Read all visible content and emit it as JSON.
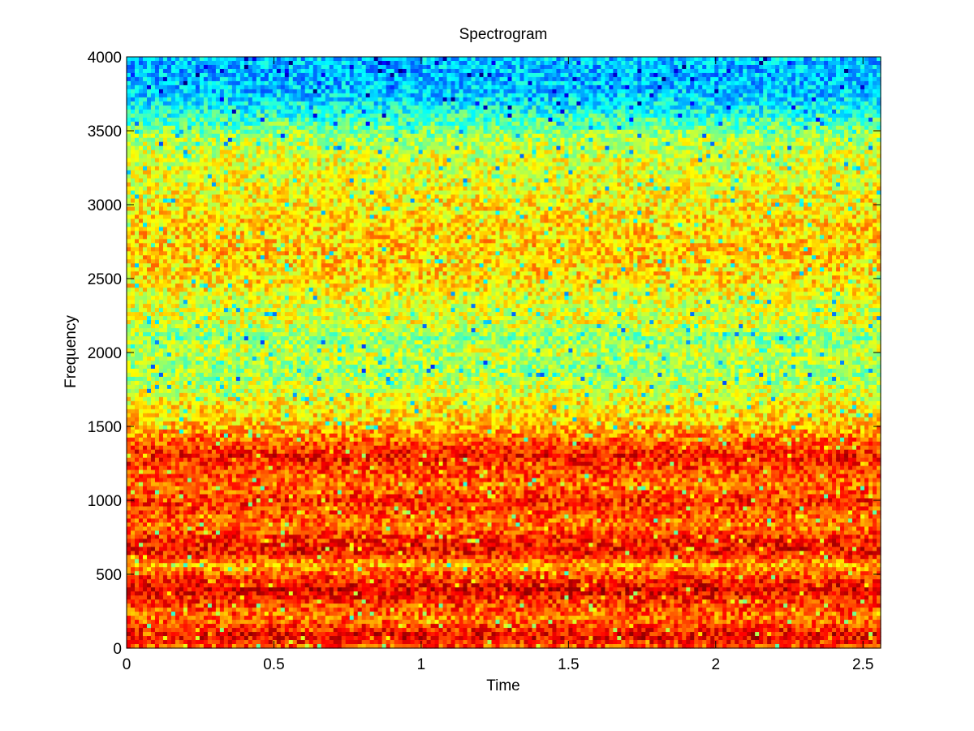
{
  "chart_data": {
    "type": "heatmap",
    "title": "Spectrogram",
    "xlabel": "Time",
    "ylabel": "Frequency",
    "xlim": [
      0,
      2.56
    ],
    "ylim": [
      0,
      4000
    ],
    "xticks": [
      0,
      0.5,
      1,
      1.5,
      2,
      2.5
    ],
    "xtick_labels": [
      "0",
      "0.5",
      "1",
      "1.5",
      "2",
      "2.5"
    ],
    "yticks": [
      0,
      500,
      1000,
      1500,
      2000,
      2500,
      3000,
      3500,
      4000
    ],
    "ytick_labels": [
      "0",
      "500",
      "1000",
      "1500",
      "2000",
      "2500",
      "3000",
      "3500",
      "4000"
    ],
    "colormap": "jet",
    "grid": false,
    "legend": "none",
    "intensity_profile": {
      "frequency": [
        0,
        80,
        200,
        330,
        400,
        500,
        560,
        650,
        750,
        820,
        1000,
        1100,
        1300,
        1450,
        1550,
        1650,
        1750,
        1900,
        2000,
        2100,
        2200,
        2300,
        2500,
        2700,
        2900,
        3100,
        3300,
        3450,
        3600,
        3750,
        3900,
        4000
      ],
      "level": [
        0.78,
        0.9,
        0.76,
        0.84,
        0.9,
        0.8,
        0.7,
        0.88,
        0.84,
        0.76,
        0.84,
        0.76,
        0.86,
        0.74,
        0.66,
        0.64,
        0.58,
        0.52,
        0.58,
        0.5,
        0.6,
        0.58,
        0.66,
        0.68,
        0.66,
        0.62,
        0.6,
        0.54,
        0.42,
        0.32,
        0.3,
        0.32
      ]
    }
  }
}
